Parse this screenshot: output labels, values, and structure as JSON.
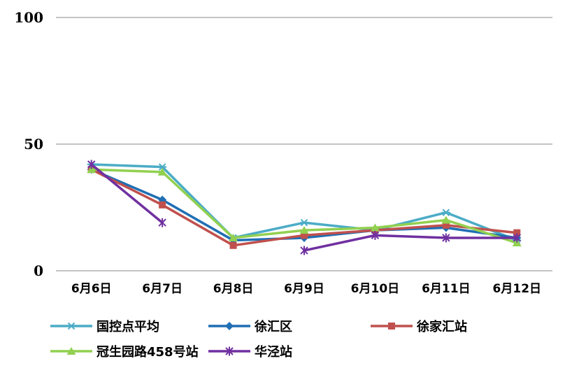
{
  "chart_data": {
    "type": "line",
    "categories": [
      "6月6日",
      "6月7日",
      "6月8日",
      "6月9日",
      "6月10日",
      "6月11日",
      "6月12日"
    ],
    "ylim": [
      0,
      100
    ],
    "yticks": [
      "0",
      "50",
      "100"
    ],
    "grid": true,
    "legend_position": "bottom",
    "series": [
      {
        "name": "国控点平均",
        "color": "#4bacc6",
        "marker": "star",
        "values": [
          42,
          41,
          13,
          19,
          16,
          23,
          12
        ]
      },
      {
        "name": "徐汇区",
        "color": "#1f6fb4",
        "marker": "diamond",
        "values": [
          40,
          28,
          12,
          13,
          16,
          17,
          13
        ]
      },
      {
        "name": "徐家汇站",
        "color": "#c0504d",
        "marker": "square",
        "values": [
          40,
          26,
          10,
          14,
          16,
          18,
          15
        ]
      },
      {
        "name": "冠生园路458号站",
        "color": "#92d050",
        "marker": "triangle",
        "values": [
          40,
          39,
          13,
          16,
          17,
          20,
          11
        ]
      },
      {
        "name": "华泾站",
        "color": "#7030a0",
        "marker": "x",
        "values": [
          42,
          19,
          null,
          8,
          14,
          13,
          13
        ]
      }
    ]
  }
}
